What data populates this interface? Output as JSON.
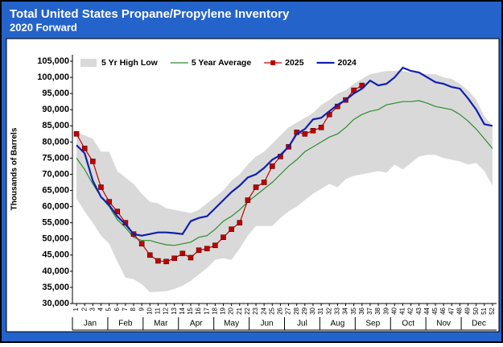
{
  "chart_data": {
    "type": "line",
    "title": "Total United States Propane/Propylene Inventory",
    "subtitle": "2020 Forward",
    "y_label": "Thousands of Barrels",
    "x": [
      1,
      2,
      3,
      4,
      5,
      6,
      7,
      8,
      9,
      10,
      11,
      12,
      13,
      14,
      15,
      16,
      17,
      18,
      19,
      20,
      21,
      22,
      23,
      24,
      25,
      26,
      27,
      28,
      29,
      30,
      31,
      32,
      33,
      34,
      35,
      36,
      37,
      38,
      39,
      40,
      41,
      42,
      43,
      44,
      45,
      46,
      47,
      48,
      49,
      50,
      51,
      52
    ],
    "xlim": [
      0.5,
      52.5
    ],
    "months": [
      "Jan",
      "Feb",
      "Mar",
      "Apr",
      "May",
      "Jun",
      "Jul",
      "Aug",
      "Sep",
      "Oct",
      "Nov",
      "Dec"
    ],
    "ylim": [
      30000,
      107000
    ],
    "yticks": [
      {
        "value": 30000,
        "label": "30,000"
      },
      {
        "value": 35000,
        "label": "35,000"
      },
      {
        "value": 40000,
        "label": "40,000"
      },
      {
        "value": 45000,
        "label": "45,000"
      },
      {
        "value": 50000,
        "label": "50,000"
      },
      {
        "value": 55000,
        "label": "55,000"
      },
      {
        "value": 60000,
        "label": "60,000"
      },
      {
        "value": 65000,
        "label": "65,000"
      },
      {
        "value": 70000,
        "label": "70,000"
      },
      {
        "value": 75000,
        "label": "75,000"
      },
      {
        "value": 80000,
        "label": "80,000"
      },
      {
        "value": 85000,
        "label": "85,000"
      },
      {
        "value": 90000,
        "label": "90,000"
      },
      {
        "value": 95000,
        "label": "95,000"
      },
      {
        "value": 100000,
        "label": "100,000"
      },
      {
        "value": 105000,
        "label": "105,000"
      }
    ],
    "grid": false,
    "legend": "top",
    "series": [
      {
        "name": "5 Yr High Low",
        "kind": "band",
        "color": "#d9d9d9",
        "high": [
          83000,
          82000,
          81000,
          77000,
          77000,
          71000,
          69000,
          67000,
          64000,
          61500,
          61000,
          59500,
          59000,
          58500,
          58000,
          59000,
          61000,
          63000,
          65000,
          68000,
          70000,
          73000,
          75500,
          77000,
          79500,
          82000,
          84500,
          86000,
          87500,
          89000,
          91500,
          93000,
          95000,
          96000,
          98000,
          99500,
          101000,
          101500,
          102000,
          102000,
          102000,
          101500,
          101500,
          101000,
          101000,
          100000,
          99500,
          98000,
          96000,
          93000,
          88000,
          85000
        ],
        "low": [
          62500,
          58500,
          55000,
          51000,
          48500,
          43000,
          38000,
          37500,
          36000,
          33500,
          33700,
          33800,
          34500,
          35500,
          37000,
          39000,
          41000,
          43500,
          44000,
          43500,
          47000,
          51000,
          54000,
          54000,
          54000,
          56500,
          58500,
          60000,
          62000,
          64000,
          65500,
          67000,
          66000,
          68500,
          69500,
          70000,
          70500,
          71000,
          70500,
          73000,
          71500,
          73500,
          75500,
          76000,
          76000,
          75000,
          74500,
          74000,
          73000,
          73500,
          71000,
          66500
        ]
      },
      {
        "name": "5 Year Average",
        "kind": "line",
        "color": "#2e8b2e",
        "values": [
          75000,
          71500,
          67000,
          63000,
          60000,
          56000,
          53500,
          50500,
          49500,
          49500,
          48800,
          48200,
          48000,
          48500,
          49000,
          50500,
          51000,
          53000,
          55500,
          57000,
          59000,
          61500,
          63500,
          65500,
          67500,
          70000,
          72500,
          74500,
          77000,
          78500,
          80000,
          81500,
          82500,
          84500,
          87000,
          88500,
          89500,
          90000,
          91500,
          92000,
          92500,
          92500,
          92800,
          92000,
          91000,
          90500,
          90000,
          88500,
          86500,
          84000,
          81000,
          78000
        ]
      },
      {
        "name": "2025",
        "kind": "marker",
        "color": "#c00000",
        "values": [
          82500,
          78000,
          74000,
          66000,
          61500,
          58500,
          55000,
          51500,
          48500,
          45000,
          43200,
          43000,
          44000,
          45500,
          44200,
          46500,
          47000,
          48000,
          50500,
          53000,
          55000,
          62000,
          66000,
          67500,
          72500,
          75500,
          78500,
          83000,
          82500,
          83500,
          84500,
          88500,
          91000,
          93000,
          96000,
          97500,
          null,
          null,
          null,
          null,
          null,
          null,
          null,
          null,
          null,
          null,
          null,
          null,
          null,
          null,
          null,
          null
        ]
      },
      {
        "name": "2024",
        "kind": "line",
        "color": "#1020b0",
        "values": [
          79000,
          76500,
          68000,
          63000,
          60500,
          57000,
          54500,
          51500,
          51000,
          51500,
          52000,
          52000,
          51800,
          51500,
          55500,
          56500,
          57000,
          59500,
          62000,
          64500,
          66500,
          69000,
          70000,
          72000,
          74500,
          76000,
          78500,
          82500,
          84000,
          87000,
          87500,
          89500,
          91500,
          93000,
          95000,
          96500,
          99000,
          97500,
          98000,
          100000,
          103000,
          102000,
          101500,
          100000,
          98500,
          98000,
          97000,
          96500,
          93500,
          90000,
          85500,
          85000
        ]
      }
    ]
  }
}
